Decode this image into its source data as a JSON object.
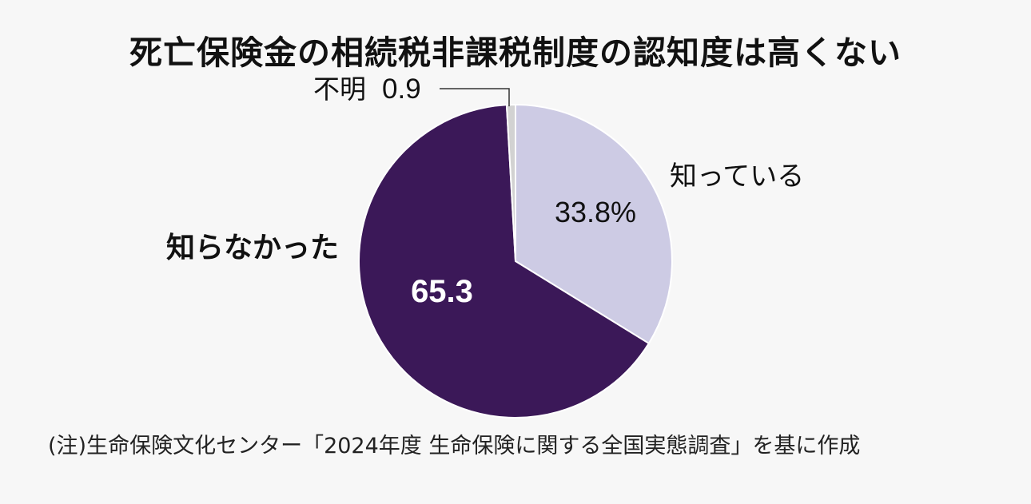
{
  "title": "死亡保険金の相続税非課税制度の認知度は高くない",
  "note": "(注)生命保険文化センター「2024年度 生命保険に関する全国実態調査」を基に作成",
  "chart_data": {
    "type": "pie",
    "title": "死亡保険金の相続税非課税制度の認知度は高くない",
    "start": "12 o'clock, clockwise",
    "slices": [
      {
        "label": "知っている",
        "value": 33.8,
        "value_label": "33.8%",
        "color": "#cdcbe4",
        "value_color": "#111111"
      },
      {
        "label": "知らなかった",
        "value": 65.3,
        "value_label": "65.3",
        "color": "#3b1858",
        "value_color": "#ffffff"
      },
      {
        "label": "不明",
        "value": 0.9,
        "value_label": "0.9",
        "color": "#d2d2d2",
        "value_color": "#111111"
      }
    ],
    "legend": "none (direct labels)"
  }
}
